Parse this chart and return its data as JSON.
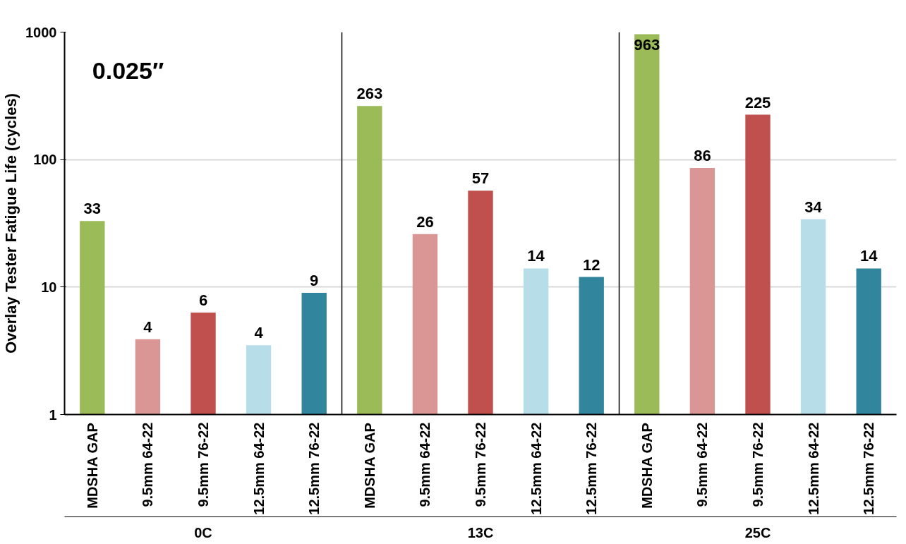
{
  "chart_data": {
    "type": "bar",
    "ylabel": "Overlay Tester Fatigue Life (cycles)",
    "categories": [
      "MDSHA GAP",
      "9.5mm 64-22",
      "9.5mm 76-22",
      "12.5mm 64-22",
      "12.5mm 76-22",
      "MDSHA GAP",
      "9.5mm 64-22",
      "9.5mm 76-22",
      "12.5mm 64-22",
      "12.5mm 76-22",
      "MDSHA GAP",
      "9.5mm 64-22",
      "9.5mm 76-22",
      "12.5mm 64-22",
      "12.5mm 76-22"
    ],
    "values": [
      33,
      3.9,
      6.3,
      3.5,
      9,
      263,
      26,
      57,
      14,
      12,
      963,
      86,
      225,
      34,
      14
    ],
    "value_labels": [
      "33",
      "4",
      "6",
      "4",
      "9",
      "263",
      "26",
      "57",
      "14",
      "12",
      "963",
      "86",
      "225",
      "34",
      "14"
    ],
    "colors": [
      "#9bbb59",
      "#d99694",
      "#c0504d",
      "#b7dde8",
      "#31859c",
      "#9bbb59",
      "#d99694",
      "#c0504d",
      "#b7dde8",
      "#31859c",
      "#9bbb59",
      "#d99694",
      "#c0504d",
      "#b7dde8",
      "#31859c"
    ],
    "log": true,
    "ylim": [
      1,
      1000
    ],
    "yticks": [
      1,
      10,
      100,
      1000
    ],
    "grid": "y",
    "annotations": [
      "0.025″",
      "0C",
      "13C",
      "25C"
    ]
  }
}
